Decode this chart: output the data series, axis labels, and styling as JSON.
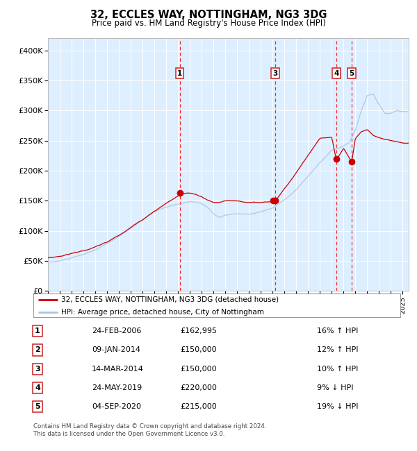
{
  "title": "32, ECCLES WAY, NOTTINGHAM, NG3 3DG",
  "subtitle": "Price paid vs. HM Land Registry's House Price Index (HPI)",
  "footer": "Contains HM Land Registry data © Crown copyright and database right 2024.\nThis data is licensed under the Open Government Licence v3.0.",
  "legend_line1": "32, ECCLES WAY, NOTTINGHAM, NG3 3DG (detached house)",
  "legend_line2": "HPI: Average price, detached house, City of Nottingham",
  "hpi_color": "#aac4e0",
  "price_color": "#cc0000",
  "plot_bg_color": "#ddeeff",
  "ylim": [
    0,
    420000
  ],
  "yticks": [
    0,
    50000,
    100000,
    150000,
    200000,
    250000,
    300000,
    350000,
    400000
  ],
  "ytick_labels": [
    "£0",
    "£50K",
    "£100K",
    "£150K",
    "£200K",
    "£250K",
    "£300K",
    "£350K",
    "£400K"
  ],
  "xlim_start": 1995,
  "xlim_end": 2025.5,
  "transactions": [
    {
      "num": 1,
      "date": "24-FEB-2006",
      "price": 162995,
      "price_str": "£162,995",
      "pct": "16%",
      "dir": "↑",
      "year": 2006.14
    },
    {
      "num": 2,
      "date": "09-JAN-2014",
      "price": 150000,
      "price_str": "£150,000",
      "pct": "12%",
      "dir": "↑",
      "year": 2014.03
    },
    {
      "num": 3,
      "date": "14-MAR-2014",
      "price": 150000,
      "price_str": "£150,000",
      "pct": "10%",
      "dir": "↑",
      "year": 2014.2
    },
    {
      "num": 4,
      "date": "24-MAY-2019",
      "price": 220000,
      "price_str": "£220,000",
      "pct": "9%",
      "dir": "↓",
      "year": 2019.39
    },
    {
      "num": 5,
      "date": "04-SEP-2020",
      "price": 215000,
      "price_str": "£215,000",
      "pct": "19%",
      "dir": "↓",
      "year": 2020.68
    }
  ],
  "vline_dates": [
    2006.14,
    2014.2,
    2019.39,
    2020.68
  ],
  "vline_nums": [
    1,
    3,
    4,
    5
  ],
  "hpi_anchors_t": [
    1995,
    1996,
    1997,
    1998,
    1999,
    2000,
    2001,
    2002,
    2003,
    2004,
    2005,
    2006,
    2007,
    2007.5,
    2008,
    2008.5,
    2009,
    2009.5,
    2010,
    2011,
    2012,
    2013,
    2014,
    2015,
    2016,
    2017,
    2018,
    2019,
    2019.5,
    2020,
    2020.5,
    2021,
    2021.5,
    2022,
    2022.5,
    2023,
    2023.5,
    2024,
    2024.5,
    2025
  ],
  "hpi_anchors_v": [
    48000,
    50000,
    55000,
    60000,
    68000,
    78000,
    90000,
    103000,
    118000,
    132000,
    140000,
    144000,
    148000,
    147000,
    144000,
    138000,
    128000,
    122000,
    126000,
    128000,
    127000,
    132000,
    138000,
    152000,
    170000,
    192000,
    215000,
    235000,
    238000,
    242000,
    248000,
    268000,
    300000,
    325000,
    328000,
    310000,
    295000,
    295000,
    300000,
    298000
  ],
  "price_anchors_t": [
    1995,
    1996,
    1997,
    1998,
    1999,
    2000,
    2001,
    2002,
    2003,
    2004,
    2005,
    2006,
    2006.14,
    2007,
    2007.5,
    2008,
    2008.5,
    2009,
    2009.5,
    2010,
    2011,
    2012,
    2013,
    2014.03,
    2014.2,
    2015,
    2016,
    2017,
    2018,
    2019,
    2019.39,
    2020,
    2020.68,
    2021,
    2021.5,
    2022,
    2022.5,
    2023,
    2023.5,
    2024,
    2024.5,
    2025
  ],
  "price_anchors_v": [
    55000,
    58000,
    63000,
    68000,
    74000,
    82000,
    93000,
    106000,
    120000,
    135000,
    148000,
    160000,
    163000,
    165000,
    162000,
    158000,
    152000,
    148000,
    148000,
    150000,
    150000,
    148000,
    148000,
    150000,
    150000,
    172000,
    198000,
    228000,
    256000,
    258000,
    220000,
    240000,
    215000,
    255000,
    265000,
    268000,
    258000,
    255000,
    252000,
    250000,
    248000,
    246000
  ]
}
